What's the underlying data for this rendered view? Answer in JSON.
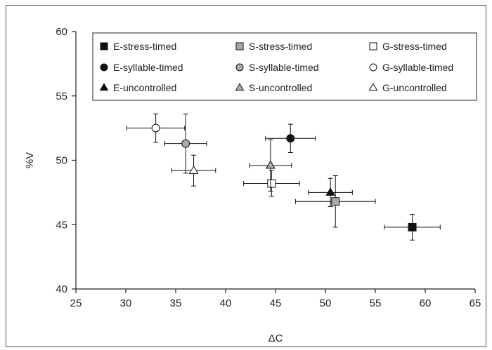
{
  "chart_data": {
    "type": "scatter",
    "xlabel": "ΔC",
    "ylabel": "%V",
    "xlim": [
      25,
      65
    ],
    "ylim": [
      40,
      60
    ],
    "xticks": [
      "25",
      "30",
      "35",
      "40",
      "45",
      "50",
      "55",
      "60",
      "65"
    ],
    "yticks": [
      "40",
      "45",
      "50",
      "55",
      "60"
    ],
    "grid": false,
    "legend_position": "top",
    "series": [
      {
        "name": "E-stress-timed",
        "marker": "square",
        "fill": "#111111",
        "x": 58.7,
        "y": 44.8,
        "xerr": 2.8,
        "yerr": 1.0
      },
      {
        "name": "S-stress-timed",
        "marker": "square",
        "fill": "#aaaaaa",
        "x": 51.0,
        "y": 46.8,
        "xerr": 4.0,
        "yerr": 2.0
      },
      {
        "name": "G-stress-timed",
        "marker": "square",
        "fill": "#ffffff",
        "x": 44.6,
        "y": 48.2,
        "xerr": 2.8,
        "yerr": 1.0
      },
      {
        "name": "E-syllable-timed",
        "marker": "circle",
        "fill": "#111111",
        "x": 46.5,
        "y": 51.7,
        "xerr": 2.5,
        "yerr": 1.1
      },
      {
        "name": "S-syllable-timed",
        "marker": "circle",
        "fill": "#aaaaaa",
        "x": 36.0,
        "y": 51.3,
        "xerr": 2.1,
        "yerr": 2.3
      },
      {
        "name": "G-syllable-timed",
        "marker": "circle",
        "fill": "#ffffff",
        "x": 33.0,
        "y": 52.5,
        "xerr": 2.9,
        "yerr": 1.1
      },
      {
        "name": "E-uncontrolled",
        "marker": "triangle",
        "fill": "#111111",
        "x": 50.5,
        "y": 47.5,
        "xerr": 2.2,
        "yerr": 1.1
      },
      {
        "name": "S-uncontrolled",
        "marker": "triangle",
        "fill": "#aaaaaa",
        "x": 44.5,
        "y": 49.6,
        "xerr": 2.1,
        "yerr": 2.0
      },
      {
        "name": "G-uncontrolled",
        "marker": "triangle",
        "fill": "#ffffff",
        "x": 36.8,
        "y": 49.2,
        "xerr": 2.2,
        "yerr": 1.2
      }
    ]
  }
}
